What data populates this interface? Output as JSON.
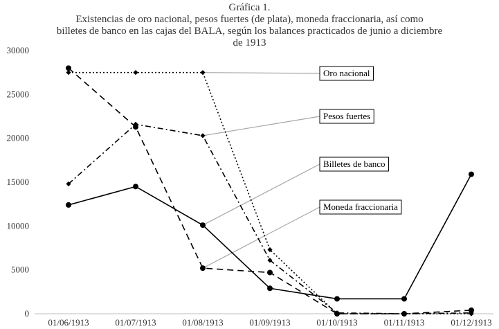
{
  "chart_data": {
    "type": "line",
    "title_lines": [
      "Gráfica 1.",
      "Existencias de oro nacional, pesos fuertes (de plata), moneda fraccionaria, así como",
      "billetes de banco en las cajas del BALA, según los balances practicados de junio a diciembre",
      "de 1913"
    ],
    "xlabel": "",
    "ylabel": "",
    "ylim": [
      0,
      30000
    ],
    "yticks": [
      0,
      5000,
      10000,
      15000,
      20000,
      25000,
      30000
    ],
    "ytick_labels": [
      "0",
      "5000",
      "10000",
      "15000",
      "20000",
      "25000",
      "30000"
    ],
    "categories": [
      "01/06/1913",
      "01/07/1913",
      "01/08/1913",
      "01/09/1913",
      "01/10/1913",
      "01/11/1913",
      "01/12/1913"
    ],
    "grid": false,
    "series": [
      {
        "name": "Oro nacional",
        "style": "dotted",
        "marker": "diamond",
        "values": [
          27500,
          27500,
          27500,
          7300,
          0,
          0,
          0
        ],
        "callout_at": 2
      },
      {
        "name": "Pesos fuertes",
        "style": "dashdot",
        "marker": "diamond",
        "values": [
          14800,
          21600,
          20300,
          6100,
          100,
          0,
          100
        ],
        "callout_at": 2
      },
      {
        "name": "Billetes de banco",
        "style": "solid",
        "marker": "circle",
        "values": [
          12400,
          14500,
          10100,
          2900,
          1700,
          1700,
          15900
        ],
        "callout_at": 2
      },
      {
        "name": "Moneda fraccionaria",
        "style": "dashed",
        "marker": "circle",
        "values": [
          28000,
          21300,
          5200,
          4700,
          0,
          0,
          400
        ],
        "callout_at": 2
      }
    ],
    "colors": {
      "line": "#000000",
      "callout": "#a6a6a6",
      "axis": "#bfbfbf",
      "text": "#333333"
    }
  }
}
